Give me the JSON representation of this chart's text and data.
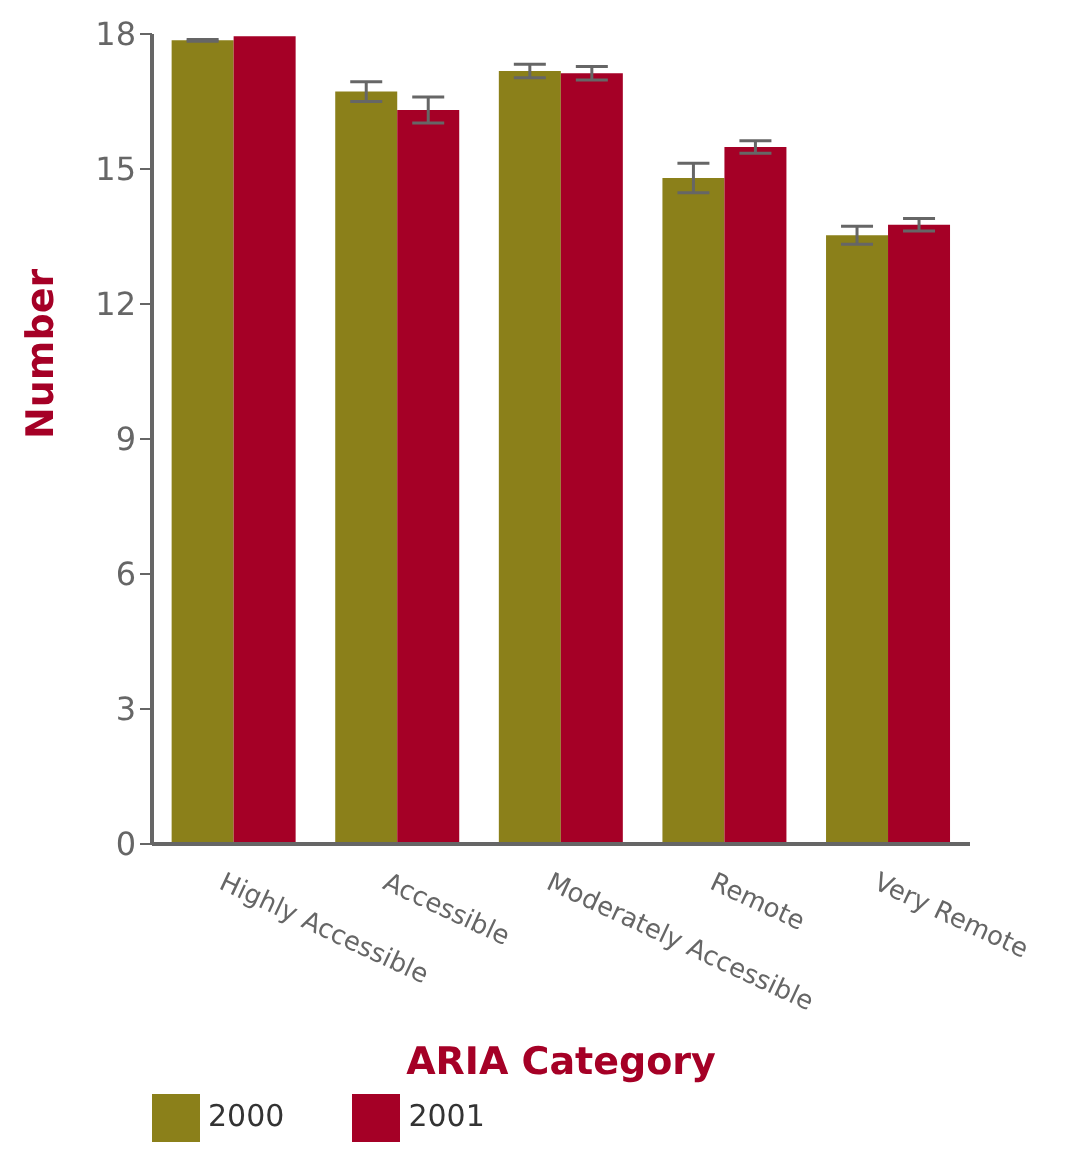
{
  "chart_data": {
    "type": "bar",
    "xlabel": "ARIA Category",
    "ylabel": "Number",
    "categories": [
      "Highly Accessible",
      "Accessible",
      "Moderately Accessible",
      "Remote",
      "Very Remote"
    ],
    "series": [
      {
        "name": "2000",
        "color": "#8b801a",
        "values": [
          17.86,
          16.72,
          17.18,
          14.8,
          13.53
        ],
        "errors": [
          0.02,
          0.22,
          0.15,
          0.33,
          0.2
        ]
      },
      {
        "name": "2001",
        "color": "#a50026",
        "values": [
          17.95,
          16.31,
          17.13,
          15.49,
          13.76
        ],
        "errors": [
          null,
          0.29,
          0.15,
          0.14,
          0.14
        ]
      }
    ],
    "ylim": [
      0,
      18
    ],
    "yticks": [
      0,
      3,
      6,
      9,
      12,
      15,
      18
    ],
    "grid": false,
    "legend": "bottom left"
  }
}
